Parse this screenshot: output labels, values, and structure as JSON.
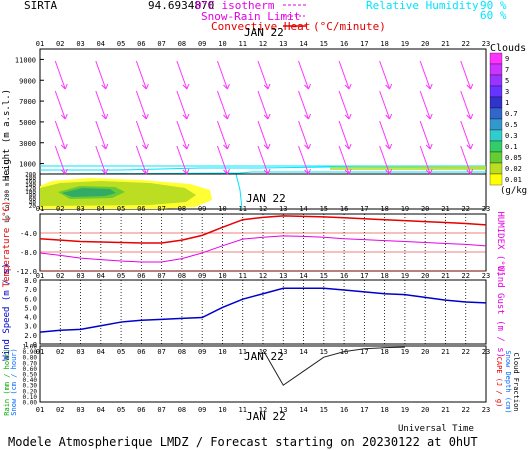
{
  "header": {
    "site": "SIRTA",
    "coords": "94.6934870",
    "legend_isotherm": "0°C isotherm",
    "legend_snowrain": "Snow-Rain Limit",
    "legend_conv": "Convective Heat",
    "legend_conv_unit": "(°C/minute)",
    "legend_rh": "Relative Humidity",
    "rh_90": "90 %",
    "rh_60": "60 %"
  },
  "hours": [
    "01",
    "02",
    "03",
    "04",
    "05",
    "06",
    "07",
    "08",
    "09",
    "10",
    "11",
    "12",
    "13",
    "14",
    "15",
    "16",
    "17",
    "18",
    "19",
    "20",
    "21",
    "22",
    "23"
  ],
  "date_label": "JAN 22",
  "footer": {
    "universal_time": "Universal Time",
    "model": "Modele Atmospherique LMDZ / Forecast starting on 20230122 at 0hUT"
  },
  "colors": {
    "wind_barb": "#ff33ff",
    "rh_line": "#00e5ff",
    "temperature": "#e60000",
    "humidex": "#e600e6",
    "wind_speed": "#0000cc",
    "cloud_fraction": "#222222"
  },
  "chart_data": [
    {
      "type": "heatmap",
      "panel": "height",
      "ylabel": "Height  (m a.s.l.)",
      "yticks": [
        1000,
        3000,
        5000,
        7000,
        9000,
        11000
      ],
      "wind_barbs": "present at all levels above 1000 m, all hours",
      "rh_contours": [
        "60",
        "90"
      ]
    },
    {
      "type": "heatmap",
      "panel": "boundary_layer",
      "ylabel": "Up to 200 m a.s.l.",
      "yticks": [
        20,
        40,
        60,
        80,
        100,
        120,
        140,
        160,
        180,
        200
      ],
      "cloud_legend_title": "Clouds",
      "cloud_legend_unit": "(g/kg)",
      "cloud_levels": [
        "9",
        "7",
        "5",
        "3",
        "1",
        "0.7",
        "0.5",
        "0.3",
        "0.1",
        "0.05",
        "0.02",
        "0.01"
      ],
      "cloud_colors": [
        "#ff33ff",
        "#cc33ff",
        "#9933ff",
        "#6633ff",
        "#3333cc",
        "#3366cc",
        "#3399cc",
        "#33cccc",
        "#33cc66",
        "#66cc33",
        "#bbdd22",
        "#ffff00"
      ]
    },
    {
      "type": "line",
      "panel": "temperature",
      "ylabel": "Temperature  (°C)",
      "ylabel_right": "HUMIDEX  (°C)",
      "yticks": [
        -4.0,
        -8.0,
        -12.0
      ],
      "ylim": [
        -12.0,
        0.0
      ],
      "x": [
        "01",
        "02",
        "03",
        "04",
        "05",
        "06",
        "07",
        "08",
        "09",
        "10",
        "11",
        "12",
        "13",
        "14",
        "15",
        "16",
        "17",
        "18",
        "19",
        "20",
        "21",
        "22",
        "23"
      ],
      "series": [
        {
          "name": "Temperature",
          "values": [
            -5.2,
            -5.5,
            -5.8,
            -5.9,
            -6.0,
            -6.1,
            -6.1,
            -5.5,
            -4.5,
            -2.8,
            -1.2,
            -0.7,
            -0.4,
            -0.5,
            -0.6,
            -0.8,
            -1.0,
            -1.2,
            -1.4,
            -1.6,
            -1.8,
            -2.0,
            -2.3
          ]
        },
        {
          "name": "HUMIDEX",
          "values": [
            -8.2,
            -8.7,
            -9.3,
            -9.6,
            -9.9,
            -10.1,
            -10.1,
            -9.4,
            -8.2,
            -6.7,
            -5.3,
            -4.9,
            -4.6,
            -4.7,
            -4.9,
            -5.2,
            -5.4,
            -5.6,
            -5.8,
            -6.0,
            -6.2,
            -6.4,
            -6.7
          ]
        }
      ]
    },
    {
      "type": "line",
      "panel": "wind",
      "ylabel": "Wind Speed  (m / s)",
      "ylabel_right": "Wind Gust  (m / s)",
      "yticks": [
        1.0,
        2.0,
        3.0,
        4.0,
        5.0,
        6.0,
        7.0,
        8.0
      ],
      "ylim": [
        1.0,
        8.0
      ],
      "x": [
        "01",
        "02",
        "03",
        "04",
        "05",
        "06",
        "07",
        "08",
        "09",
        "10",
        "11",
        "12",
        "13",
        "14",
        "15",
        "16",
        "17",
        "18",
        "19",
        "20",
        "21",
        "22",
        "23"
      ],
      "series": [
        {
          "name": "Wind Speed",
          "values": [
            2.3,
            2.5,
            2.6,
            3.0,
            3.4,
            3.6,
            3.7,
            3.8,
            3.9,
            5.0,
            5.9,
            6.5,
            7.1,
            7.1,
            7.1,
            6.9,
            6.7,
            6.5,
            6.4,
            6.1,
            5.8,
            5.6,
            5.5
          ]
        }
      ]
    },
    {
      "type": "line",
      "panel": "precip",
      "ylabel": "Rain (mm / hour)",
      "ylabel2": "Snow (cm / hour)",
      "ylabel_right": "CAPE (J / g)",
      "ylabel_right2": "Snow Depth (cm)",
      "ylabel_right3": "Cloud Fraction",
      "yticks": [
        0.0,
        0.1,
        0.2,
        0.3,
        0.4,
        0.5,
        0.6,
        0.7,
        0.8,
        0.9,
        1.0
      ],
      "ylim": [
        0.0,
        1.0
      ],
      "x": [
        "01",
        "02",
        "03",
        "04",
        "05",
        "06",
        "07",
        "08",
        "09",
        "10",
        "11",
        "12",
        "13",
        "14",
        "15",
        "16",
        "17",
        "18",
        "19",
        "20",
        "21",
        "22",
        "23"
      ],
      "series": [
        {
          "name": "Cloud Fraction",
          "values": [
            null,
            null,
            null,
            null,
            null,
            null,
            null,
            null,
            null,
            null,
            null,
            0.93,
            0.3,
            0.55,
            0.8,
            0.9,
            0.95,
            0.97,
            0.98,
            null,
            null,
            null,
            null
          ]
        }
      ]
    }
  ]
}
